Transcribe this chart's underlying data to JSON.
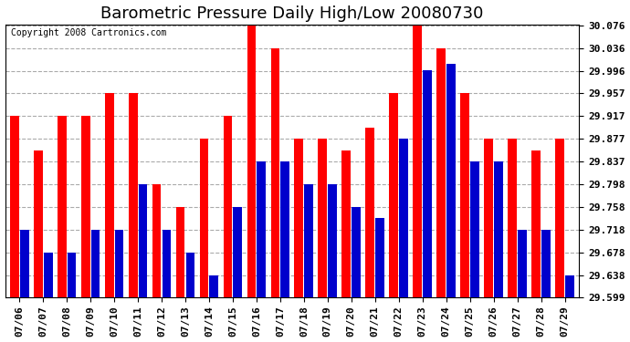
{
  "title": "Barometric Pressure Daily High/Low 20080730",
  "copyright": "Copyright 2008 Cartronics.com",
  "dates": [
    "07/06",
    "07/07",
    "07/08",
    "07/09",
    "07/10",
    "07/11",
    "07/12",
    "07/13",
    "07/14",
    "07/15",
    "07/16",
    "07/17",
    "07/18",
    "07/19",
    "07/20",
    "07/21",
    "07/22",
    "07/23",
    "07/24",
    "07/25",
    "07/26",
    "07/27",
    "07/28",
    "07/29"
  ],
  "highs": [
    29.917,
    29.857,
    29.917,
    29.917,
    29.957,
    29.957,
    29.798,
    29.758,
    29.877,
    29.917,
    30.076,
    30.036,
    29.877,
    29.877,
    29.857,
    29.897,
    29.957,
    30.076,
    30.036,
    29.957,
    29.877,
    29.877,
    29.857,
    29.877
  ],
  "lows": [
    29.718,
    29.678,
    29.678,
    29.718,
    29.718,
    29.798,
    29.718,
    29.678,
    29.638,
    29.758,
    29.838,
    29.838,
    29.798,
    29.798,
    29.758,
    29.738,
    29.878,
    29.998,
    30.008,
    29.837,
    29.837,
    29.718,
    29.718,
    29.638
  ],
  "high_color": "#ff0000",
  "low_color": "#0000cc",
  "background_color": "#ffffff",
  "plot_bg_color": "#ffffff",
  "grid_color": "#aaaaaa",
  "ymin": 29.599,
  "ymax": 30.076,
  "yticks": [
    29.599,
    29.638,
    29.678,
    29.718,
    29.758,
    29.798,
    29.837,
    29.877,
    29.917,
    29.957,
    29.996,
    30.036,
    30.076
  ],
  "title_fontsize": 13,
  "tick_fontsize": 8,
  "copyright_fontsize": 7
}
